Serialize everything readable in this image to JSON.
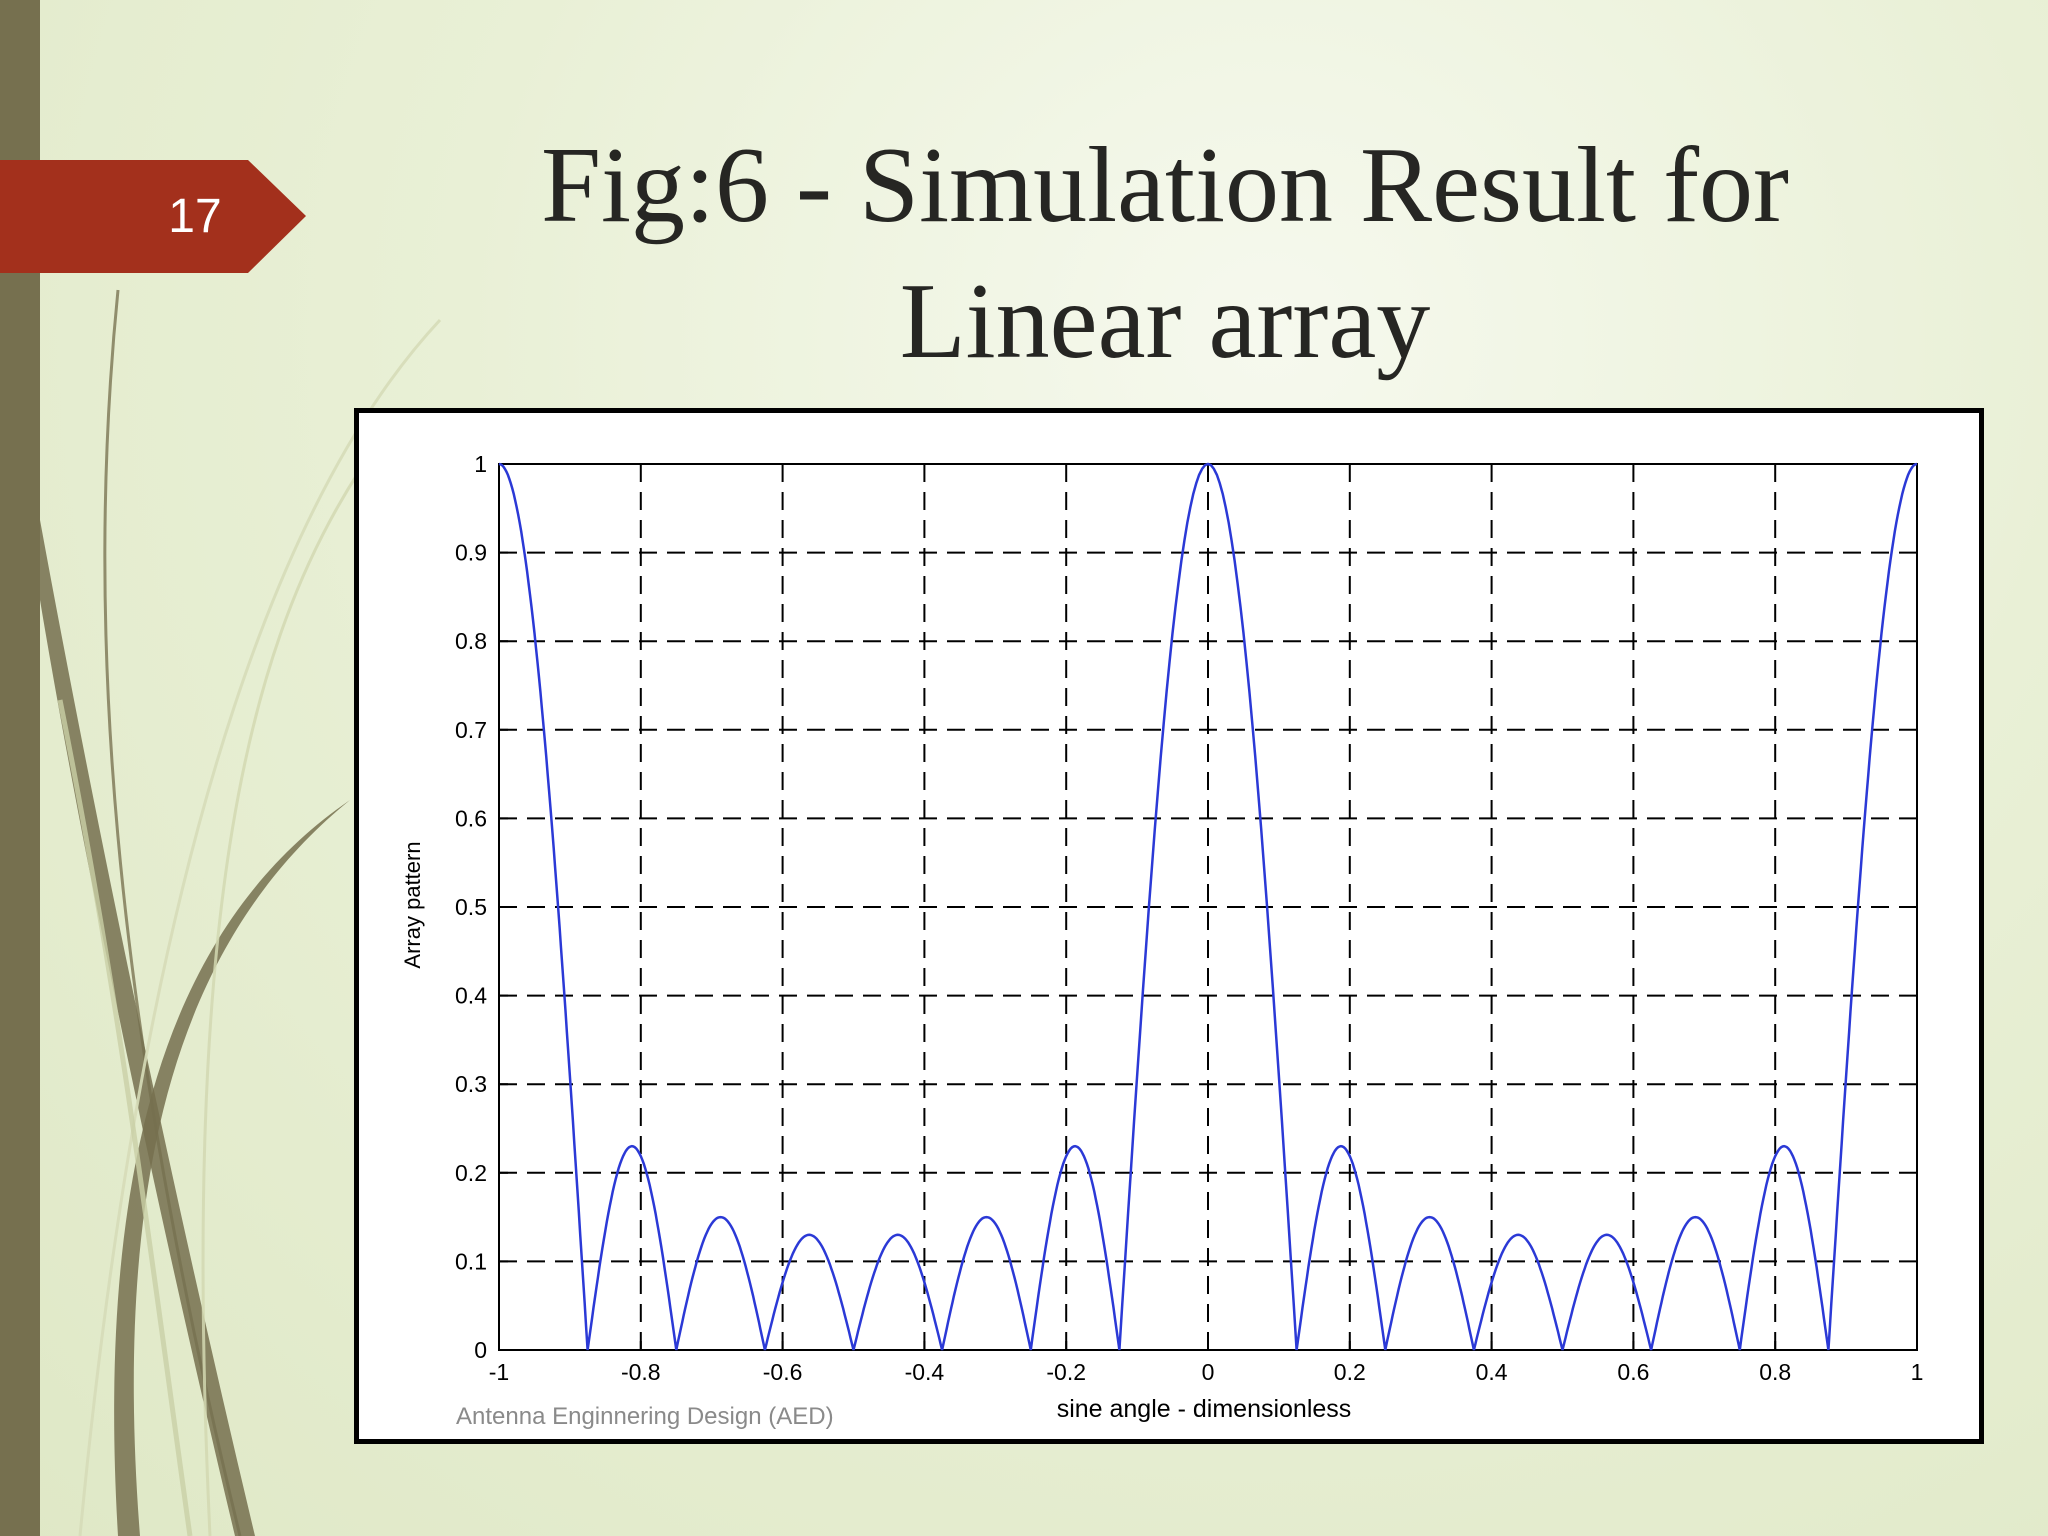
{
  "slide": {
    "number": "17",
    "title_line1": "Fig:6 - Simulation Result for",
    "title_line2": "Linear array",
    "credit": "Antenna Enginnering Design (AED)",
    "colors": {
      "left_bar": "#76704f",
      "badge": "#a3301c",
      "curve": "#2b39d6"
    }
  },
  "chart_data": {
    "type": "line",
    "title": "",
    "xlabel": "sine angle - dimensionless",
    "ylabel": "Array pattern",
    "xlim": [
      -1,
      1
    ],
    "ylim": [
      0,
      1
    ],
    "grid": true,
    "x_ticks": [
      -1,
      -0.8,
      -0.6,
      -0.4,
      -0.2,
      0,
      0.2,
      0.4,
      0.6,
      0.8,
      1
    ],
    "x_tick_labels": [
      "-1",
      "-0.8",
      "-0.6",
      "-0.4",
      "-0.2",
      "0",
      "0.2",
      "0.4",
      "0.6",
      "0.8",
      "1"
    ],
    "y_ticks": [
      0,
      0.1,
      0.2,
      0.3,
      0.4,
      0.5,
      0.6,
      0.7,
      0.8,
      0.9,
      1
    ],
    "y_tick_labels": [
      "0",
      "0.1",
      "0.2",
      "0.3",
      "0.4",
      "0.5",
      "0.6",
      "0.7",
      "0.8",
      "0.9",
      "1"
    ],
    "series": [
      {
        "x": [
          -1,
          -0.875,
          -0.8125,
          -0.75,
          -0.6875,
          -0.625,
          -0.5625,
          -0.5,
          -0.4375,
          -0.375,
          -0.3125,
          -0.25,
          -0.1875,
          -0.125,
          0,
          0.125,
          0.1875,
          0.25,
          0.3125,
          0.375,
          0.4375,
          0.5,
          0.5625,
          0.625,
          0.6875,
          0.75,
          0.8125,
          0.875,
          1
        ],
        "y": [
          1,
          0,
          0.23,
          0,
          0.15,
          0,
          0.13,
          0,
          0.13,
          0,
          0.15,
          0,
          0.23,
          0,
          1,
          0,
          0.23,
          0,
          0.15,
          0,
          0.13,
          0,
          0.13,
          0,
          0.15,
          0,
          0.23,
          0,
          1
        ]
      }
    ]
  }
}
